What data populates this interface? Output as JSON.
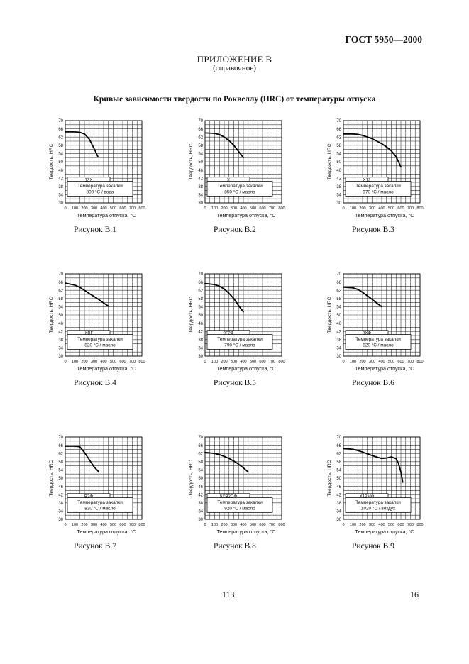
{
  "header": {
    "standard": "ГОСТ 5950—2000",
    "appendix": "ПРИЛОЖЕНИЕ В",
    "appendix_note": "(справочное)",
    "title": "Кривые зависимости твердости по Роквеллу (HRC) от температуры отпуска"
  },
  "footer": {
    "page_number": "113",
    "sheet_number": "16"
  },
  "axes_common": {
    "ylabel": "Твердость, HRC",
    "xlabel": "Температура отпуска, °С",
    "quench_label": "Температура закалки",
    "xlim": [
      0,
      800
    ],
    "ylim": [
      30,
      70
    ],
    "x_ticks": [
      "0",
      "100",
      "200",
      "300",
      "400",
      "500",
      "600",
      "700",
      "800"
    ],
    "y_ticks": [
      "70",
      "66",
      "62",
      "58",
      "54",
      "50",
      "46",
      "42",
      "38",
      "34",
      "30"
    ],
    "grid": true
  },
  "chart_data": [
    {
      "type": "line",
      "caption": "Рисунок В.1",
      "steel": "13Х",
      "quench": "800 °С / вода",
      "x": [
        0,
        100,
        150,
        200,
        250,
        300,
        340
      ],
      "y": [
        64.5,
        64.5,
        64.3,
        63.5,
        61,
        56.5,
        52.5
      ]
    },
    {
      "type": "line",
      "caption": "Рисунок В.2",
      "steel": "Х",
      "quench": "850 °С / масло",
      "x": [
        0,
        100,
        150,
        200,
        250,
        300,
        350,
        400
      ],
      "y": [
        64,
        63.8,
        63.2,
        62,
        60.3,
        58,
        55,
        52
      ]
    },
    {
      "type": "line",
      "caption": "Рисунок В.3",
      "steel": "Х12",
      "quench": "970 °С / масло",
      "x": [
        0,
        100,
        150,
        200,
        300,
        400,
        450,
        500,
        550,
        600
      ],
      "y": [
        63.5,
        63.5,
        63.3,
        62.8,
        61.2,
        58.8,
        57.2,
        55.3,
        52.5,
        47.5
      ]
    },
    {
      "type": "line",
      "caption": "Рисунок В.4",
      "steel": "ХВГ",
      "quench": "820 °С / масло",
      "x": [
        0,
        100,
        150,
        200,
        250,
        300,
        350,
        400,
        450
      ],
      "y": [
        65.5,
        64.5,
        63.5,
        62,
        60.4,
        59,
        57.5,
        55.8,
        54.3
      ]
    },
    {
      "type": "line",
      "caption": "Рисунок В.5",
      "steel": "9Г2Ф",
      "quench": "790 °С / масло",
      "x": [
        0,
        100,
        150,
        200,
        250,
        300,
        350,
        400
      ],
      "y": [
        65.3,
        64.8,
        64,
        62.6,
        60.5,
        58,
        54.5,
        51.5
      ]
    },
    {
      "type": "line",
      "caption": "Рисунок В.6",
      "steel": "8ХФ",
      "quench": "820 °С / масло",
      "x": [
        0,
        100,
        150,
        200,
        250,
        300,
        350,
        400
      ],
      "y": [
        63.5,
        63.2,
        62.4,
        61,
        59.3,
        57.6,
        55.7,
        54
      ]
    },
    {
      "type": "line",
      "caption": "Рисунок В.7",
      "steel": "В2Ф",
      "quench": "830 °С / масло",
      "x": [
        0,
        50,
        100,
        150,
        200,
        250,
        300,
        350
      ],
      "y": [
        65.5,
        65.5,
        65.5,
        65.3,
        62.5,
        59,
        55.5,
        53
      ]
    },
    {
      "type": "line",
      "caption": "Рисунок В.8",
      "steel": "5ХВ2СФ",
      "quench": "920 °С / масло",
      "x": [
        0,
        100,
        150,
        200,
        250,
        300,
        350,
        400,
        450
      ],
      "y": [
        62.5,
        62,
        61.4,
        60.6,
        59.6,
        58.3,
        56.8,
        55,
        53
      ]
    },
    {
      "type": "line",
      "caption": "Рисунок В.9",
      "steel": "Х12МФ",
      "quench": "1020 °С / воздух",
      "x": [
        0,
        100,
        150,
        200,
        250,
        300,
        350,
        400,
        450,
        500,
        550,
        575,
        600,
        620
      ],
      "y": [
        64.5,
        64,
        63.4,
        62.7,
        61.8,
        61,
        60.2,
        59.6,
        59.8,
        60.3,
        59.5,
        57.2,
        53,
        48
      ]
    }
  ]
}
